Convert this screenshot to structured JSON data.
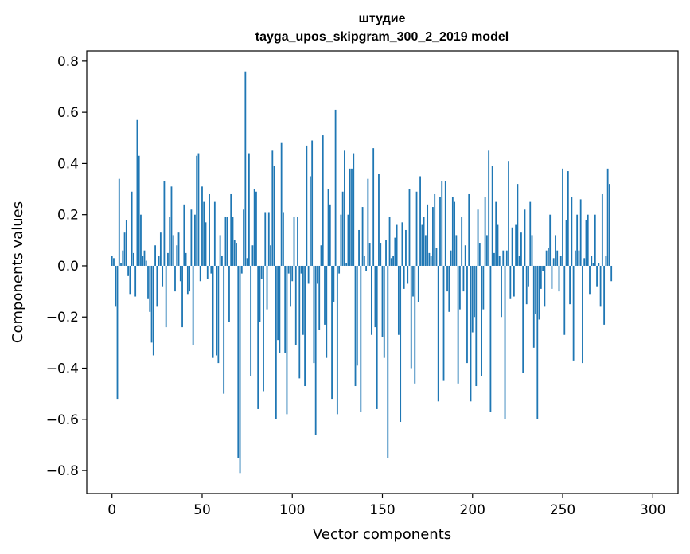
{
  "chart_data": {
    "type": "bar",
    "title": "штудие",
    "subtitle": "tayga_upos_skipgram_300_2_2019 model",
    "xlabel": "Vector components",
    "ylabel": "Components values",
    "xlim": [
      -14,
      314
    ],
    "ylim": [
      -0.89,
      0.84
    ],
    "xticks": [
      0,
      50,
      100,
      150,
      200,
      250,
      300
    ],
    "xtick_labels": [
      "0",
      "50",
      "100",
      "150",
      "200",
      "250",
      "300"
    ],
    "yticks": [
      -0.8,
      -0.6,
      -0.4,
      -0.2,
      0.0,
      0.2,
      0.4,
      0.6,
      0.8
    ],
    "ytick_labels": [
      "−0.8",
      "−0.6",
      "−0.4",
      "−0.2",
      "0.0",
      "0.2",
      "0.4",
      "0.6",
      "0.8"
    ],
    "grid": false,
    "color": "#1f77b4",
    "values": [
      0.04,
      0.03,
      -0.16,
      -0.52,
      0.34,
      0.01,
      0.06,
      0.13,
      0.18,
      -0.04,
      -0.11,
      0.29,
      0.05,
      -0.12,
      0.57,
      0.43,
      0.2,
      0.04,
      0.06,
      0.02,
      -0.13,
      -0.18,
      -0.3,
      -0.35,
      0.08,
      -0.16,
      0.04,
      0.13,
      -0.08,
      0.33,
      -0.24,
      0.05,
      0.19,
      0.31,
      0.12,
      -0.1,
      0.08,
      0.13,
      -0.06,
      -0.24,
      0.24,
      0.05,
      -0.11,
      -0.1,
      0.22,
      -0.31,
      0.2,
      0.43,
      0.44,
      -0.06,
      0.31,
      0.25,
      0.17,
      -0.05,
      0.28,
      -0.03,
      -0.36,
      0.25,
      -0.35,
      -0.38,
      0.12,
      0.04,
      -0.5,
      0.19,
      0.19,
      -0.22,
      0.28,
      0.19,
      0.1,
      0.09,
      -0.75,
      -0.81,
      -0.03,
      0.22,
      0.76,
      0.03,
      0.44,
      -0.43,
      0.08,
      0.3,
      0.29,
      -0.56,
      -0.22,
      -0.05,
      -0.49,
      0.21,
      -0.17,
      0.21,
      0.08,
      0.45,
      0.39,
      -0.6,
      -0.29,
      -0.34,
      0.48,
      0.21,
      -0.34,
      -0.58,
      -0.03,
      -0.16,
      -0.06,
      0.19,
      -0.31,
      0.19,
      -0.44,
      -0.03,
      -0.27,
      -0.47,
      0.47,
      -0.07,
      0.35,
      0.49,
      -0.38,
      -0.66,
      -0.07,
      -0.25,
      0.08,
      0.51,
      -0.23,
      -0.36,
      0.3,
      0.24,
      -0.52,
      -0.14,
      0.61,
      -0.58,
      -0.03,
      0.2,
      0.29,
      0.45,
      0.01,
      0.2,
      0.38,
      0.38,
      0.44,
      -0.47,
      -0.39,
      0.14,
      -0.57,
      0.23,
      0.04,
      -0.02,
      0.34,
      0.09,
      -0.27,
      0.46,
      -0.24,
      -0.56,
      0.36,
      0.09,
      -0.28,
      -0.36,
      0.1,
      -0.75,
      0.19,
      0.03,
      0.04,
      0.11,
      0.16,
      -0.27,
      -0.61,
      0.17,
      -0.09,
      0.14,
      -0.07,
      0.3,
      -0.4,
      -0.12,
      -0.46,
      0.29,
      -0.14,
      0.35,
      0.16,
      0.19,
      0.12,
      0.24,
      0.05,
      0.04,
      0.23,
      0.28,
      0.07,
      -0.53,
      0.27,
      0.33,
      -0.45,
      0.33,
      -0.1,
      -0.18,
      0.06,
      0.27,
      0.25,
      0.12,
      -0.46,
      -0.17,
      0.19,
      -0.1,
      0.08,
      -0.38,
      0.28,
      -0.53,
      -0.26,
      -0.2,
      -0.47,
      0.22,
      0.09,
      -0.43,
      -0.17,
      0.27,
      0.12,
      0.45,
      -0.57,
      0.39,
      0.05,
      0.25,
      0.16,
      0.04,
      -0.2,
      0.06,
      -0.6,
      0.06,
      0.41,
      -0.13,
      0.15,
      -0.12,
      0.16,
      0.32,
      0.04,
      0.13,
      -0.42,
      0.22,
      -0.15,
      -0.08,
      0.25,
      0.12,
      -0.32,
      -0.19,
      -0.6,
      -0.21,
      -0.09,
      -0.02,
      -0.16,
      0.06,
      0.07,
      0.2,
      -0.09,
      0.03,
      0.12,
      0.06,
      -0.1,
      0.04,
      0.38,
      -0.27,
      0.18,
      0.37,
      -0.15,
      0.27,
      -0.37,
      0.06,
      0.2,
      0.06,
      0.26,
      -0.38,
      0.03,
      0.18,
      0.2,
      -0.11,
      0.04,
      0.01,
      0.2,
      -0.08,
      0.01,
      -0.16,
      0.28,
      -0.23,
      0.04,
      0.38,
      0.32,
      -0.06
    ]
  }
}
